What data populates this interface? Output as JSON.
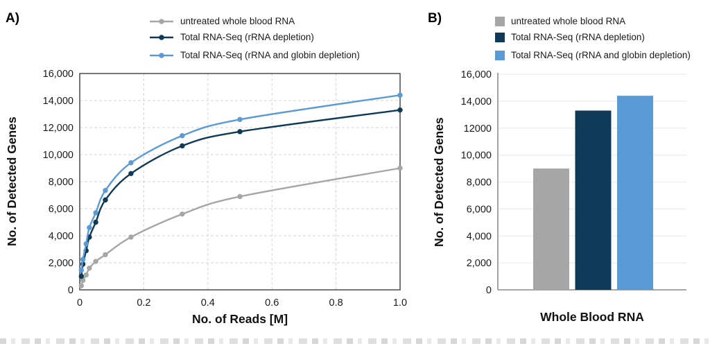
{
  "panel_a": {
    "label": "A)"
  },
  "panel_b": {
    "label": "B)"
  },
  "chart_data": [
    {
      "panel": "A",
      "type": "line",
      "title": "",
      "xlabel": "No. of Reads [M]",
      "ylabel": "No. of Detected Genes",
      "xlim": [
        0,
        1.0
      ],
      "ylim": [
        0,
        16000
      ],
      "grid": "dashed",
      "legend_position": "top",
      "xticks": {
        "values": [
          0,
          0.2,
          0.4,
          0.6,
          0.8,
          1.0
        ],
        "labels": [
          "0",
          "0.2",
          "0.4",
          "0.6",
          "0.8",
          "1.0"
        ]
      },
      "yticks": {
        "values": [
          0,
          2000,
          4000,
          6000,
          8000,
          10000,
          12000,
          14000,
          16000
        ],
        "labels": [
          "0",
          "2,000",
          "4,000",
          "6,000",
          "8,000",
          "10,000",
          "12,000",
          "14,000",
          "16,000"
        ]
      },
      "x": [
        0.005,
        0.01,
        0.02,
        0.03,
        0.05,
        0.08,
        0.16,
        0.32,
        0.5,
        1.0
      ],
      "series": [
        {
          "name": "untreated whole blood RNA",
          "color": "#a6a6a6",
          "marker": "circle",
          "values": [
            300,
            700,
            1100,
            1600,
            2100,
            2600,
            3900,
            5600,
            6900,
            9000
          ]
        },
        {
          "name": "Total RNA-Seq (rRNA depletion)",
          "color": "#0e3a57",
          "marker": "circle",
          "values": [
            1000,
            1900,
            2900,
            3900,
            5000,
            6650,
            8600,
            10650,
            11700,
            13300
          ]
        },
        {
          "name": "Total RNA-Seq (rRNA and globin depletion)",
          "color": "#5b9bd5",
          "marker": "circle",
          "values": [
            1450,
            2250,
            3400,
            4600,
            5700,
            7350,
            9400,
            11400,
            12600,
            14400
          ]
        }
      ]
    },
    {
      "panel": "B",
      "type": "bar",
      "title": "",
      "categories": [
        "Whole Blood RNA"
      ],
      "xlabel": "Whole Blood RNA",
      "ylabel": "No. of Detected Genes",
      "ylim": [
        0,
        16000
      ],
      "grid": "solid",
      "legend_position": "top",
      "yticks": {
        "values": [
          0,
          2000,
          4000,
          6000,
          8000,
          10000,
          12000,
          14000,
          16000
        ],
        "labels": [
          "0",
          "2,000",
          "4,000",
          "6,000",
          "8,000",
          "10,000",
          "12000",
          "14,000",
          "16,000"
        ]
      },
      "series": [
        {
          "name": "untreated whole blood RNA",
          "color": "#a6a6a6",
          "values": [
            9000
          ]
        },
        {
          "name": "Total RNA-Seq (rRNA depletion)",
          "color": "#0e3a57",
          "values": [
            13300
          ]
        },
        {
          "name": "Total RNA-Seq (rRNA and globin depletion)",
          "color": "#5b9bd5",
          "values": [
            14400
          ]
        }
      ]
    }
  ]
}
